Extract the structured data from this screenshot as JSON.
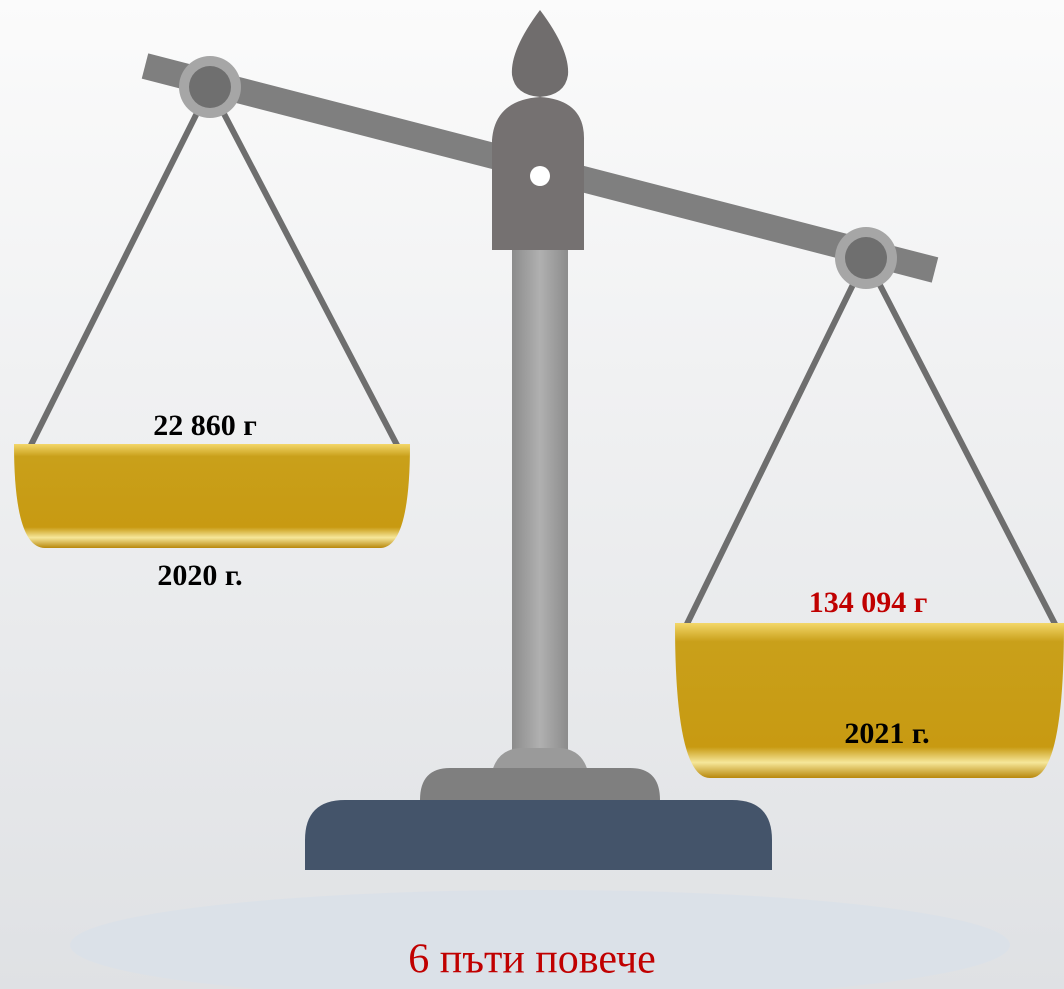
{
  "left_pan": {
    "value": "22 860 г",
    "year": "2020 г."
  },
  "right_pan": {
    "value": "134 094 г",
    "year": "2021 г."
  },
  "caption": "6 пъти повече"
}
